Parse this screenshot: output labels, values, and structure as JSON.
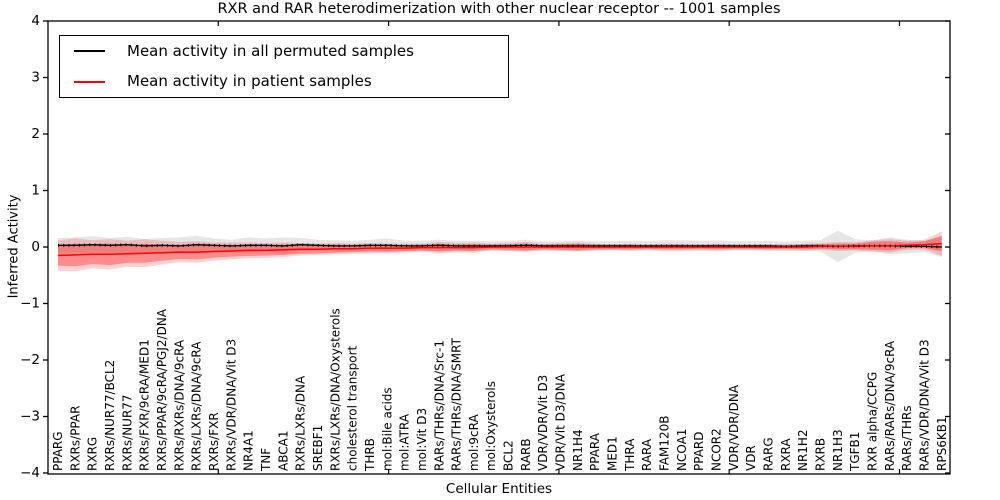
{
  "axes": {
    "y_tick_labels": [
      "4",
      "3",
      "2",
      "1",
      "0",
      "−1",
      "−2",
      "−3",
      "−4"
    ],
    "y_tick_values": [
      4,
      3,
      2,
      1,
      0,
      -1,
      -2,
      -3,
      -4
    ]
  },
  "chart_data": {
    "type": "line",
    "title": "RXR and RAR heterodimerization with other nuclear receptor -- 1001 samples",
    "xlabel": "Cellular Entities",
    "ylabel": "Inferred Activity",
    "ylim": [
      -4,
      4
    ],
    "grid": false,
    "legend_position": "upper left",
    "categories": [
      "PPARG",
      "RXRs/PPAR",
      "RXRG",
      "RXRs/NUR77/BCL2",
      "RXRs/NUR77",
      "RXRs/FXR/9cRA/MED1",
      "RXRs/PPAR/9cRA/PGJ2/DNA",
      "RXRs/RXRs/DNA/9cRA",
      "RXRs/LXRs/DNA/9cRA",
      "RXRs/FXR",
      "RXRs/VDR/DNA/Vit D3",
      "NR4A1",
      "TNF",
      "ABCA1",
      "RXRs/LXRs/DNA",
      "SREBF1",
      "RXRs/LXRs/DNA/Oxysterols",
      "cholesterol transport",
      "THRB",
      "mol:Bile acids",
      "mol:ATRA",
      "mol:Vit D3",
      "RARs/THRs/DNA/Src-1",
      "RARs/THRs/DNA/SMRT",
      "mol:9cRA",
      "mol:Oxysterols",
      "BCL2",
      "RARB",
      "VDR/VDR/Vit D3",
      "VDR/Vit D3/DNA",
      "NR1H4",
      "PPARA",
      "MED1",
      "THRA",
      "RARA",
      "FAM120B",
      "NCOA1",
      "PPARD",
      "NCOR2",
      "VDR/VDR/DNA",
      "VDR",
      "RARG",
      "RXRA",
      "NR1H2",
      "RXRB",
      "NR1H3",
      "TGFB1",
      "RXR alpha/CCPG",
      "RARs/RARs/DNA/9cRA",
      "RARs/THRs",
      "RARs/VDR/DNA/Vit D3",
      "RPS6KB1"
    ],
    "series": [
      {
        "name": "Mean activity in all permuted samples",
        "color": "#000000",
        "band_color": "rgba(60,60,60,0.13)",
        "values": [
          0.03,
          0.03,
          0.04,
          0.03,
          0.04,
          0.02,
          0.03,
          0.02,
          0.04,
          0.03,
          0.02,
          0.03,
          0.03,
          0.02,
          0.04,
          0.03,
          0.02,
          0.02,
          0.03,
          0.03,
          0.02,
          0.02,
          0.03,
          0.02,
          0.02,
          0.02,
          0.02,
          0.03,
          0.02,
          0.02,
          0.02,
          0.02,
          0.02,
          0.02,
          0.02,
          0.02,
          0.02,
          0.02,
          0.02,
          0.02,
          0.02,
          0.02,
          0.01,
          0.02,
          0.02,
          0.01,
          0.02,
          0.02,
          0.02,
          0.01,
          0.01,
          0.0
        ],
        "band_halfwidth": [
          0.13,
          0.14,
          0.15,
          0.13,
          0.14,
          0.12,
          0.13,
          0.15,
          0.16,
          0.12,
          0.11,
          0.14,
          0.12,
          0.15,
          0.12,
          0.1,
          0.1,
          0.09,
          0.1,
          0.12,
          0.09,
          0.09,
          0.1,
          0.09,
          0.09,
          0.08,
          0.09,
          0.1,
          0.08,
          0.08,
          0.09,
          0.08,
          0.08,
          0.09,
          0.08,
          0.1,
          0.1,
          0.09,
          0.1,
          0.08,
          0.08,
          0.09,
          0.08,
          0.09,
          0.1,
          0.28,
          0.12,
          0.1,
          0.15,
          0.12,
          0.1,
          0.18
        ]
      },
      {
        "name": "Mean activity in patient samples",
        "color": "#ff0000",
        "band_color_inner": "rgba(255,0,0,0.33)",
        "band_color_outer": "rgba(255,0,0,0.18)",
        "values": [
          -0.15,
          -0.14,
          -0.13,
          -0.13,
          -0.12,
          -0.11,
          -0.1,
          -0.09,
          -0.09,
          -0.08,
          -0.07,
          -0.06,
          -0.06,
          -0.05,
          -0.04,
          -0.04,
          -0.03,
          -0.03,
          -0.02,
          -0.02,
          -0.02,
          -0.01,
          -0.01,
          -0.01,
          -0.01,
          0.0,
          0.0,
          0.0,
          0.0,
          0.0,
          0.0,
          0.0,
          0.0,
          0.0,
          0.0,
          0.0,
          0.0,
          0.0,
          0.0,
          0.0,
          0.0,
          0.0,
          0.0,
          0.0,
          0.01,
          0.01,
          0.01,
          0.02,
          0.02,
          0.03,
          0.04,
          0.06
        ],
        "band_halfwidth_inner": [
          0.18,
          0.2,
          0.17,
          0.19,
          0.16,
          0.17,
          0.14,
          0.12,
          0.13,
          0.11,
          0.1,
          0.1,
          0.09,
          0.09,
          0.08,
          0.07,
          0.07,
          0.06,
          0.06,
          0.06,
          0.05,
          0.05,
          0.07,
          0.05,
          0.06,
          0.04,
          0.05,
          0.06,
          0.04,
          0.05,
          0.06,
          0.04,
          0.04,
          0.04,
          0.03,
          0.04,
          0.04,
          0.03,
          0.04,
          0.03,
          0.03,
          0.04,
          0.03,
          0.04,
          0.04,
          0.05,
          0.05,
          0.07,
          0.08,
          0.05,
          0.06,
          0.14
        ],
        "band_halfwidth_outer": [
          0.27,
          0.29,
          0.25,
          0.27,
          0.23,
          0.25,
          0.21,
          0.18,
          0.19,
          0.16,
          0.15,
          0.14,
          0.13,
          0.13,
          0.11,
          0.1,
          0.1,
          0.09,
          0.09,
          0.08,
          0.08,
          0.07,
          0.1,
          0.08,
          0.09,
          0.06,
          0.07,
          0.09,
          0.06,
          0.07,
          0.08,
          0.06,
          0.05,
          0.06,
          0.05,
          0.06,
          0.06,
          0.05,
          0.06,
          0.05,
          0.05,
          0.05,
          0.05,
          0.06,
          0.06,
          0.08,
          0.07,
          0.1,
          0.12,
          0.08,
          0.09,
          0.22
        ]
      }
    ]
  }
}
